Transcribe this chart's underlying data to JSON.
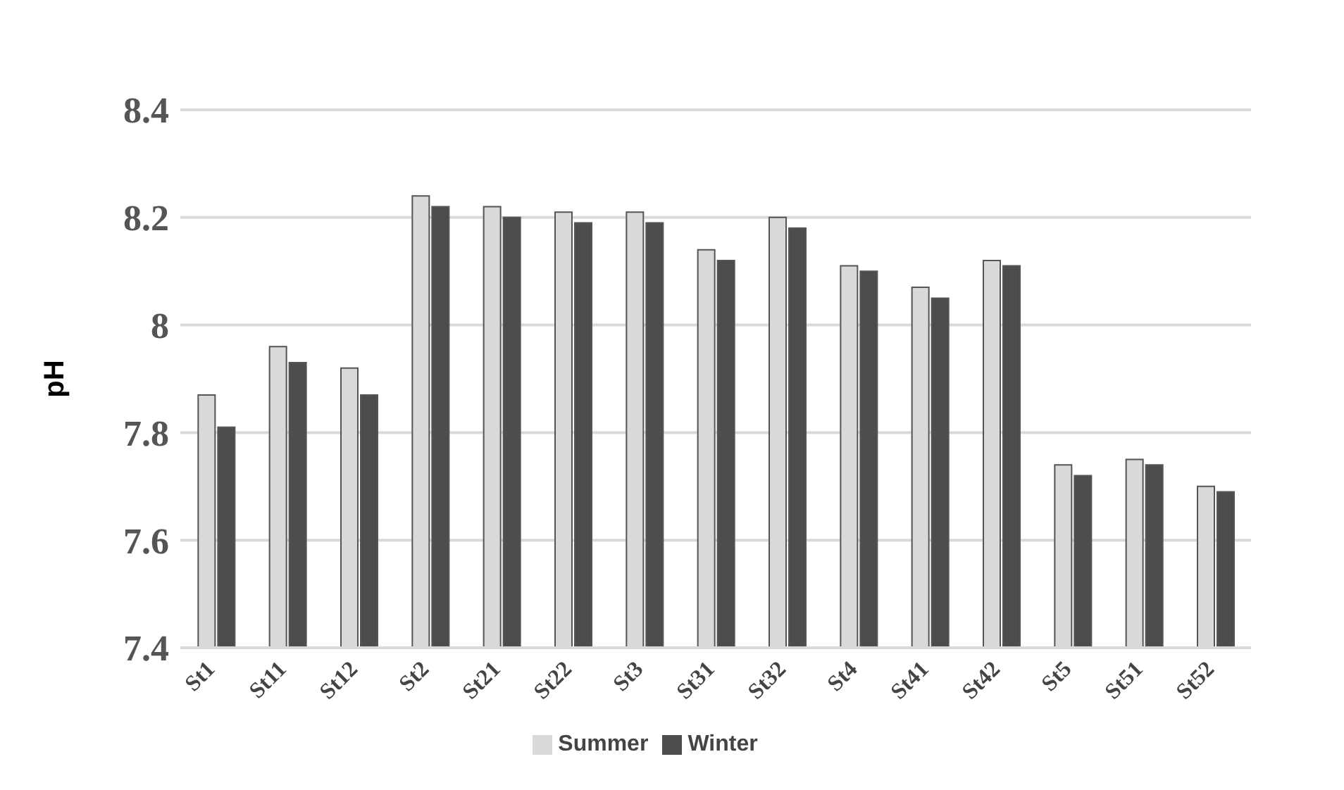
{
  "chart_data": {
    "type": "bar",
    "ylabel": "pH",
    "categories": [
      "St1",
      "St11",
      "St12",
      "St2",
      "St21",
      "St22",
      "St3",
      "St31",
      "St32",
      "St4",
      "St41",
      "St42",
      "St5",
      "St51",
      "St52"
    ],
    "series": [
      {
        "name": "Summer",
        "color": "#d9d9d9",
        "values": [
          7.87,
          7.96,
          7.92,
          8.24,
          8.22,
          8.21,
          8.21,
          8.14,
          8.2,
          8.11,
          8.07,
          8.12,
          7.74,
          7.75,
          7.7
        ]
      },
      {
        "name": "Winter",
        "color": "#4d4d4d",
        "values": [
          7.81,
          7.93,
          7.87,
          8.22,
          8.2,
          8.19,
          8.19,
          8.12,
          8.18,
          8.1,
          8.05,
          8.11,
          7.72,
          7.74,
          7.69
        ]
      }
    ],
    "ylim": [
      7.4,
      8.4
    ],
    "yticks": [
      7.4,
      7.6,
      7.8,
      8,
      8.2,
      8.4
    ],
    "grid": "y",
    "legend": "bottom"
  }
}
